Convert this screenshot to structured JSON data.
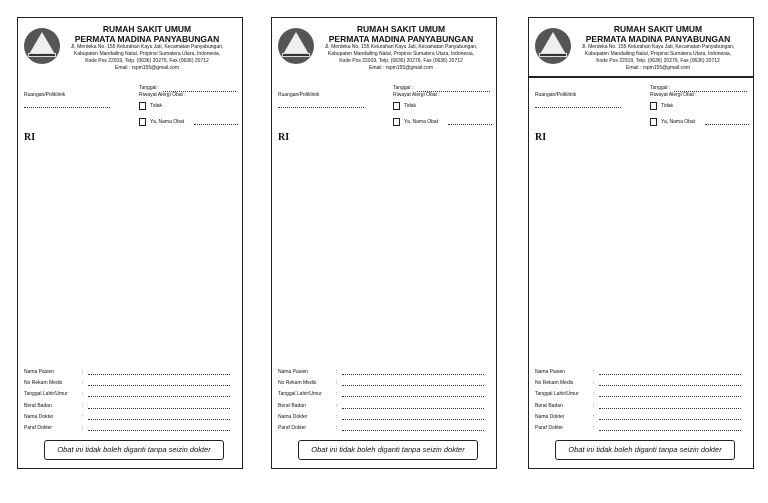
{
  "header": {
    "title1": "RUMAH SAKIT UMUM",
    "title2": "PERMATA MADINA PANYABUNGAN",
    "address": [
      "Jl. Merdeka No. 155 Kelurahan Kayu Jati, Kecamatan Panyabungan,",
      "Kabupaten Mandailing Natal, Propinsi Sumatera Utara, Indonesia,",
      "Kode Pos 22919, Telp. (0636) 20279, Fax (0636) 20712",
      "Email : rspm155@gmail.com"
    ]
  },
  "form": {
    "ruangan": "Ruangan/Poliklinik",
    "tanggal": "Tanggal :",
    "riwayat": "Riwayat Alergi Obat :",
    "tidak": "Tidak",
    "ya": "Ya, Nama Obat",
    "ri": "RI",
    "fields": [
      "Nama Pasien",
      "No Rekam Medis",
      "Tanggal Lahir/Umur",
      "Berat Badan",
      "Nama Dokter",
      "Paraf Dokter"
    ],
    "colon": ":",
    "footer": "Obat ini tidak boleh diganti tanpa seizin dokter"
  }
}
